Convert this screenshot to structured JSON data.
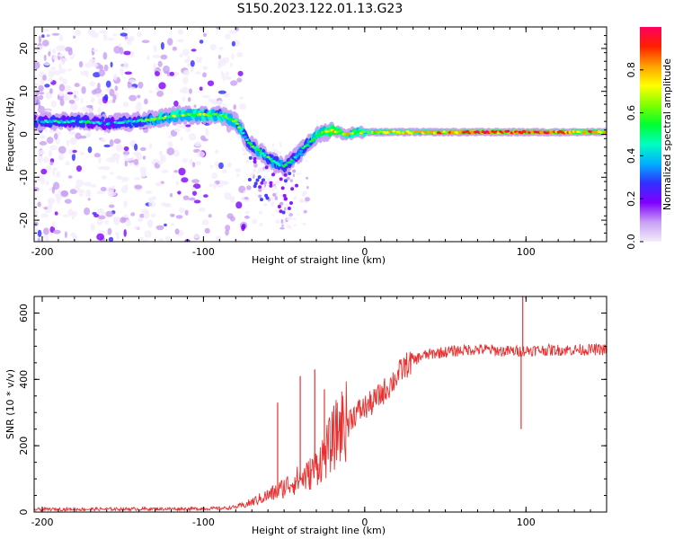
{
  "title": "S150.2023.122.01.13.G23",
  "chart_data": [
    {
      "type": "heatmap",
      "xlabel": "Height of straight line (km)",
      "ylabel": "Frequency (Hz)",
      "xlim": [
        -205,
        150
      ],
      "ylim": [
        -25,
        25
      ],
      "xticks": [
        -200,
        -100,
        0,
        100
      ],
      "yticks": [
        -20,
        -10,
        0,
        10,
        20
      ],
      "colorbar": {
        "label": "Normalized spectral amplitude",
        "range": [
          0,
          1
        ],
        "ticks": [
          0.0,
          0.2,
          0.4,
          0.6,
          0.8
        ],
        "colors": [
          "#f4ecfc",
          "#c8a0f4",
          "#8000ff",
          "#3030ff",
          "#00b0ff",
          "#00ffc0",
          "#00ff30",
          "#80ff00",
          "#ffff00",
          "#ffa000",
          "#ff2000",
          "#ff0060"
        ]
      },
      "ridge": {
        "x": [
          -205,
          -190,
          -175,
          -160,
          -145,
          -130,
          -115,
          -100,
          -90,
          -80,
          -72,
          -65,
          -58,
          -50,
          -42,
          -35,
          -28,
          -20,
          -12,
          -5,
          0,
          20,
          40,
          60,
          80,
          100,
          120,
          150
        ],
        "frequency": [
          3,
          3,
          3,
          2.5,
          3,
          3.5,
          4.5,
          4.5,
          4.5,
          3,
          -2,
          -4,
          -6,
          -7.5,
          -5,
          -2,
          0,
          1,
          0,
          0.5,
          0.5,
          0.5,
          0.5,
          0.5,
          0.5,
          0.5,
          0.5,
          0.5
        ],
        "amplitude": [
          0.3,
          0.35,
          0.35,
          0.3,
          0.4,
          0.5,
          0.55,
          0.55,
          0.5,
          0.55,
          0.4,
          0.5,
          0.45,
          0.4,
          0.4,
          0.45,
          0.55,
          0.7,
          0.6,
          0.6,
          0.55,
          0.65,
          0.65,
          0.75,
          0.8,
          0.8,
          0.75,
          0.7
        ]
      }
    },
    {
      "type": "line",
      "xlabel": "Height of straight line (km)",
      "ylabel": "SNR (10 * v/v)",
      "xlim": [
        -205,
        150
      ],
      "ylim": [
        0,
        650
      ],
      "xticks": [
        -200,
        -100,
        0,
        100
      ],
      "yticks": [
        0,
        200,
        400,
        600
      ],
      "color": "#e83030",
      "envelope": {
        "x": [
          -205,
          -100,
          -85,
          -75,
          -65,
          -55,
          -45,
          -35,
          -25,
          -15,
          -5,
          5,
          15,
          25,
          35,
          45,
          55,
          65,
          75,
          85,
          95,
          105,
          150
        ],
        "y": [
          8,
          10,
          12,
          20,
          40,
          60,
          90,
          110,
          170,
          260,
          300,
          330,
          380,
          440,
          470,
          480,
          485,
          490,
          490,
          485,
          485,
          488,
          490
        ]
      },
      "spikes": [
        {
          "x": -54,
          "y": 330
        },
        {
          "x": -40,
          "y": 410
        },
        {
          "x": -31,
          "y": 430
        },
        {
          "x": -25,
          "y": 370
        },
        {
          "x": 98,
          "y": 650
        },
        {
          "x": 97,
          "y": 250
        }
      ]
    }
  ]
}
